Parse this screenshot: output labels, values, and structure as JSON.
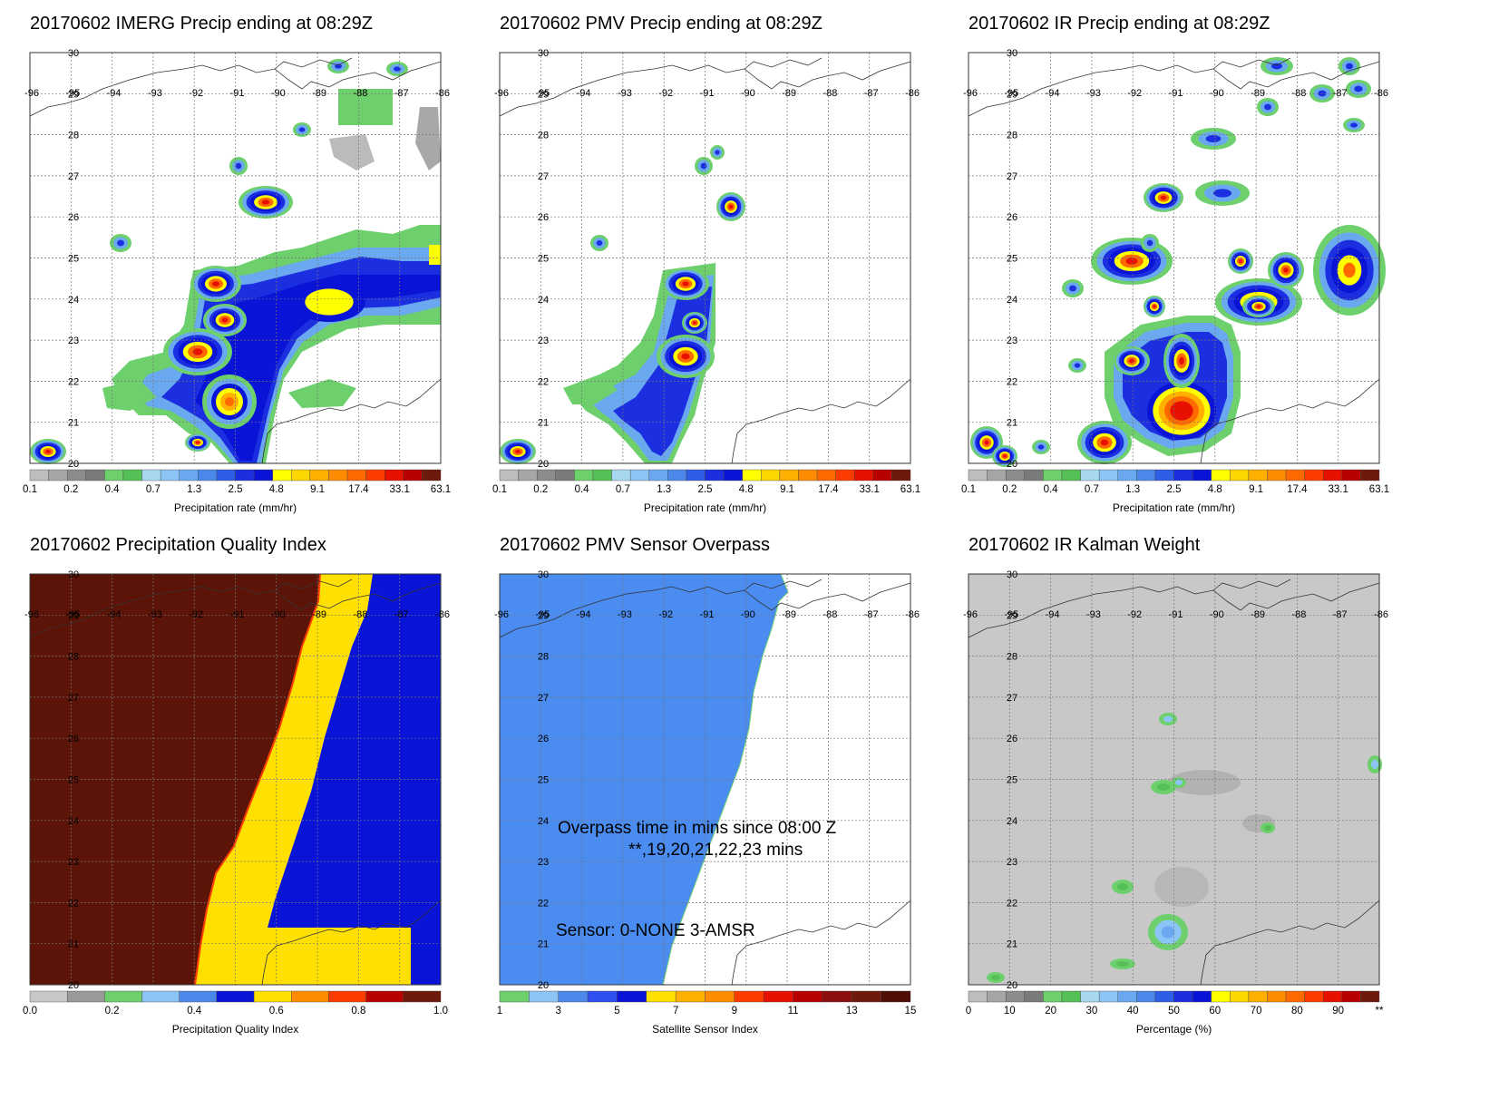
{
  "panels": [
    {
      "id": "imerg",
      "title": "20170602 IMERG Precip ending at 08:29Z",
      "colorbar_label": "Precipitation rate (mm/hr)",
      "colorbar_ticks": [
        "0.1",
        "0.2",
        "0.4",
        "0.7",
        "1.3",
        "2.5",
        "4.8",
        "9.1",
        "17.4",
        "33.1",
        "63.1"
      ]
    },
    {
      "id": "pmv",
      "title": "20170602 PMV Precip ending at 08:29Z",
      "colorbar_label": "Precipitation rate (mm/hr)",
      "colorbar_ticks": [
        "0.1",
        "0.2",
        "0.4",
        "0.7",
        "1.3",
        "2.5",
        "4.8",
        "9.1",
        "17.4",
        "33.1",
        "63.1"
      ]
    },
    {
      "id": "ir",
      "title": "20170602 IR Precip ending at 08:29Z",
      "colorbar_label": "Precipitation rate (mm/hr)",
      "colorbar_ticks": [
        "0.1",
        "0.2",
        "0.4",
        "0.7",
        "1.3",
        "2.5",
        "4.8",
        "9.1",
        "17.4",
        "33.1",
        "63.1"
      ]
    },
    {
      "id": "pqi",
      "title": "20170602 Precipitation Quality Index",
      "colorbar_label": "Precipitation Quality Index",
      "colorbar_ticks": [
        "0.0",
        "0.2",
        "0.4",
        "0.6",
        "0.8",
        "1.0"
      ]
    },
    {
      "id": "overpass",
      "title": "20170602 PMV Sensor Overpass",
      "colorbar_label": "Satellite Sensor Index",
      "colorbar_ticks": [
        "1",
        "3",
        "5",
        "7",
        "9",
        "11",
        "13",
        "15"
      ],
      "overpass_text_1": "Overpass time in mins since 08:00 Z",
      "overpass_text_2": "**,19,20,21,22,23 mins",
      "sensor_text": "Sensor:   0-NONE  3-AMSR"
    },
    {
      "id": "kalman",
      "title": "20170602 IR Kalman Weight",
      "colorbar_label": "Percentage (%)",
      "colorbar_ticks": [
        "0",
        "10",
        "20",
        "30",
        "40",
        "50",
        "60",
        "70",
        "80",
        "90",
        "**"
      ]
    }
  ],
  "map": {
    "lon_labels": [
      "-96",
      "-95",
      "-94",
      "-93",
      "-92",
      "-91",
      "-90",
      "-89",
      "-88",
      "-87",
      "-86"
    ],
    "lat_labels": [
      "30",
      "29",
      "28",
      "27",
      "26",
      "25",
      "24",
      "23",
      "22",
      "21",
      "20"
    ]
  },
  "colors": {
    "precip_scale": [
      "#bdbdbd",
      "#a6a6a6",
      "#8c8c8c",
      "#7a7a7a",
      "#6dd06d",
      "#55c055",
      "#a8d8f0",
      "#8cc4f5",
      "#6aa8f0",
      "#4c88ea",
      "#2f5ee6",
      "#1c2fe0",
      "#0a14d6",
      "#ffff00",
      "#ffd700",
      "#ffb000",
      "#ff8c00",
      "#ff6a00",
      "#ff3c00",
      "#e81000",
      "#b80000",
      "#6e1a0a"
    ],
    "pqi_scale": [
      "#c8c8c8",
      "#9a9a9a",
      "#6dd06d",
      "#8cc4f5",
      "#4c88ea",
      "#0a14d6",
      "#ffe000",
      "#ff8c00",
      "#ff3c00",
      "#b80000",
      "#6e1a0a"
    ],
    "sensor_scale": [
      "#6dd06d",
      "#8cc4f5",
      "#4c88ea",
      "#2f4ff0",
      "#0a14d6",
      "#ffe000",
      "#ffb000",
      "#ff8c00",
      "#ff3c00",
      "#e81000",
      "#b80000",
      "#8a1010",
      "#6e1a0a",
      "#4e0e06"
    ],
    "kalman_scale": [
      "#bdbdbd",
      "#a6a6a6",
      "#8c8c8c",
      "#7a7a7a",
      "#6dd06d",
      "#55c055",
      "#a8d8f0",
      "#8cc4f5",
      "#6aa8f0",
      "#4c88ea",
      "#2f5ee6",
      "#1c2fe0",
      "#0a14d6",
      "#ffff00",
      "#ffd700",
      "#ffb000",
      "#ff8c00",
      "#ff6a00",
      "#ff3c00",
      "#e81000",
      "#b80000",
      "#6e1a0a"
    ],
    "pqi_brown": "#5c1408",
    "pqi_yellow": "#ffe000",
    "pqi_blue": "#0a14d6",
    "overpass_blue": "#4a8cf0",
    "kalman_gray": "#c8c8c8"
  }
}
